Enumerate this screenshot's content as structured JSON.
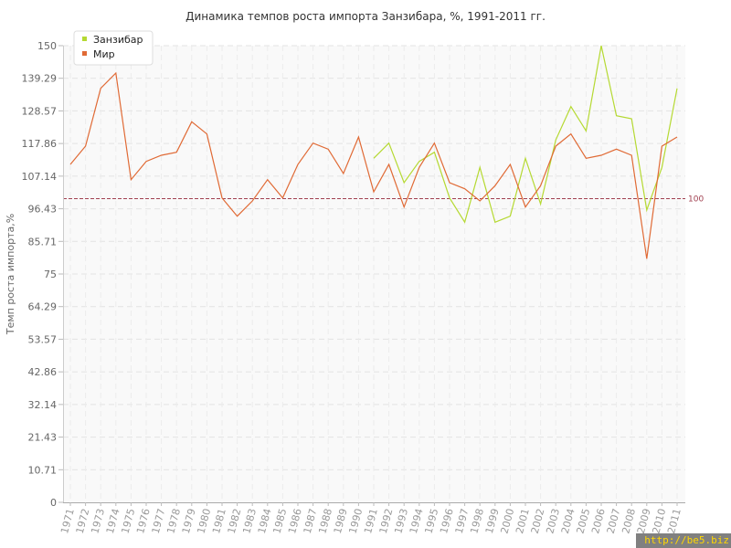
{
  "chart_data": {
    "type": "line",
    "title": "Динамика темпов роста импорта Занзибара, %, 1991-2011 гг.",
    "xlabel": "",
    "ylabel": "Темп роста импорта,%",
    "ylim": [
      0,
      150
    ],
    "yticks": [
      "0",
      "10.71",
      "21.43",
      "32.14",
      "42.86",
      "53.57",
      "64.29",
      "75",
      "85.71",
      "96.43",
      "107.14",
      "117.86",
      "128.57",
      "139.29",
      "150"
    ],
    "x": [
      "1971",
      "1972",
      "1973",
      "1974",
      "1975",
      "1976",
      "1977",
      "1978",
      "1979",
      "1980",
      "1981",
      "1982",
      "1983",
      "1984",
      "1985",
      "1986",
      "1987",
      "1988",
      "1989",
      "1990",
      "1991",
      "1992",
      "1993",
      "1994",
      "1995",
      "1996",
      "1997",
      "1998",
      "1999",
      "2000",
      "2001",
      "2002",
      "2003",
      "2004",
      "2005",
      "2006",
      "2007",
      "2008",
      "2009",
      "2010",
      "2011"
    ],
    "reference_line": {
      "value": 100,
      "label": "100",
      "color": "#a04050"
    },
    "grid": true,
    "legend_position": "top-left",
    "series": [
      {
        "name": "Занзибар",
        "color": "#b5d932",
        "values": [
          null,
          null,
          null,
          null,
          null,
          null,
          null,
          null,
          null,
          null,
          null,
          null,
          null,
          null,
          null,
          null,
          null,
          null,
          null,
          null,
          113,
          118,
          105,
          112,
          115,
          100,
          92,
          110,
          92,
          94,
          113,
          98,
          119,
          130,
          122,
          150,
          127,
          126,
          96,
          110,
          136
        ]
      },
      {
        "name": "Мир",
        "color": "#e06a35",
        "values": [
          111,
          117,
          136,
          141,
          106,
          112,
          114,
          115,
          125,
          121,
          100,
          94,
          99,
          106,
          100,
          111,
          118,
          116,
          108,
          120,
          102,
          111,
          97,
          110,
          118,
          105,
          103,
          99,
          104,
          111,
          97,
          104,
          117,
          121,
          113,
          114,
          116,
          114,
          80,
          117,
          120
        ]
      }
    ]
  },
  "watermark": "http://be5.biz"
}
